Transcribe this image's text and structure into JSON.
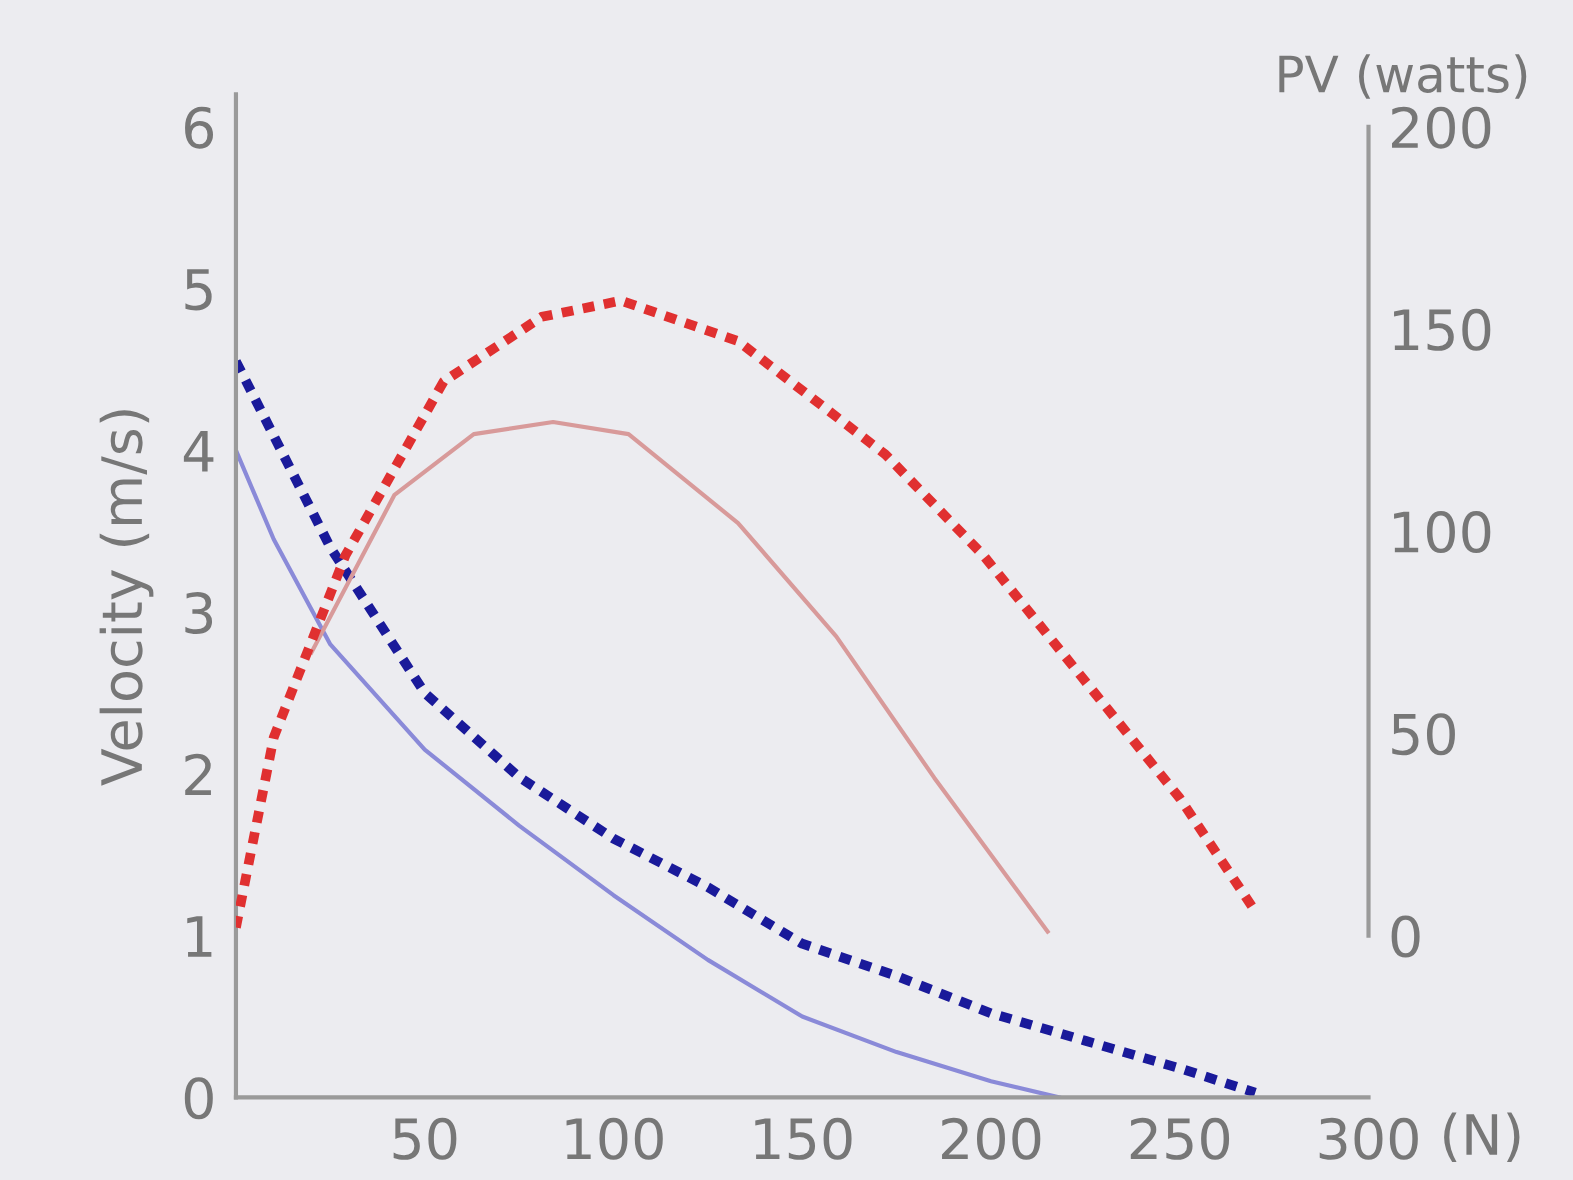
{
  "chart_data": {
    "type": "line",
    "xlabel": "(N)",
    "ylabel": "Velocity (m/s)",
    "y2label": "PV (watts)",
    "xlim": [
      0,
      300
    ],
    "xticks": [
      {
        "value": 50,
        "label": "50"
      },
      {
        "value": 100,
        "label": "100"
      },
      {
        "value": 150,
        "label": "150"
      },
      {
        "value": 200,
        "label": "200"
      },
      {
        "value": 250,
        "label": "250"
      },
      {
        "value": 300,
        "label": "300"
      }
    ],
    "ylim": [
      0,
      6.2
    ],
    "yticks": [
      0,
      1,
      2,
      3,
      4,
      5,
      6
    ],
    "y2lim": [
      -40,
      208
    ],
    "y2ticks": [
      0,
      50,
      100,
      150,
      200
    ],
    "grid": false,
    "legend": false,
    "series": [
      {
        "color": "#8a8ad8",
        "line_style": "solid",
        "x": [
          0,
          10,
          25,
          50,
          75,
          100,
          125,
          150,
          175,
          200,
          218
        ],
        "values": [
          4.0,
          3.45,
          2.8,
          2.15,
          1.68,
          1.25,
          0.85,
          0.5,
          0.28,
          0.1,
          0
        ]
      },
      {
        "color": "#1a1a9a",
        "line_style": "dashed",
        "x": [
          0,
          25,
          50,
          75,
          100,
          125,
          150,
          175,
          200,
          225,
          250,
          270
        ],
        "values": [
          4.55,
          3.4,
          2.5,
          1.98,
          1.6,
          1.3,
          0.95,
          0.75,
          0.52,
          0.35,
          0.18,
          0.03
        ]
      },
      {
        "color": "#d89a9a",
        "line_style": "solid",
        "axis": "y2",
        "x": [
          20,
          42,
          63,
          84,
          104,
          133,
          159,
          185,
          215
        ],
        "values": [
          70,
          109,
          124,
          127,
          124,
          102,
          74,
          39,
          1
        ]
      },
      {
        "color": "#e03030",
        "line_style": "dashed",
        "axis": "y2",
        "x": [
          0,
          10,
          29,
          55,
          81,
          102,
          133,
          172,
          198,
          224,
          250,
          270
        ],
        "values": [
          2,
          49,
          94,
          137,
          153,
          157,
          147,
          119,
          94,
          64,
          34,
          6
        ]
      }
    ]
  }
}
